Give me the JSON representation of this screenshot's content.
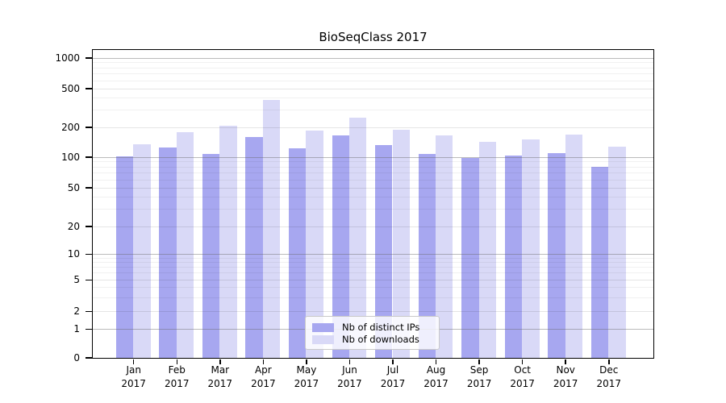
{
  "title": "BioSeqClass 2017",
  "legend": {
    "items": [
      {
        "label": "Nb of distinct IPs",
        "color": "#a7a7f0"
      },
      {
        "label": "Nb of downloads",
        "color": "#d9d9f7"
      }
    ]
  },
  "chart_data": {
    "type": "bar",
    "title": "BioSeqClass 2017",
    "categories": [
      "Jan",
      "Feb",
      "Mar",
      "Apr",
      "May",
      "Jun",
      "Jul",
      "Aug",
      "Sep",
      "Oct",
      "Nov",
      "Dec"
    ],
    "year": "2017",
    "series": [
      {
        "name": "Nb of distinct IPs",
        "color": "#a7a7f0",
        "values": [
          101,
          123,
          106,
          158,
          121,
          165,
          131,
          106,
          97,
          102,
          108,
          80
        ]
      },
      {
        "name": "Nb of downloads",
        "color": "#d9d9f7",
        "values": [
          133,
          176,
          206,
          380,
          184,
          249,
          186,
          165,
          141,
          150,
          167,
          126
        ]
      }
    ],
    "xlabel": "",
    "ylabel": "",
    "yscale": "log-like (0,1,2,5,10,20,50,100,200,500,1000)",
    "yticks": [
      0,
      1,
      2,
      5,
      10,
      20,
      50,
      100,
      200,
      500,
      1000
    ],
    "ylim": [
      0,
      1000
    ],
    "grid": "horizontal, major at powers of 10, minor log subdivisions",
    "legend_position": "lower center inside plot"
  }
}
